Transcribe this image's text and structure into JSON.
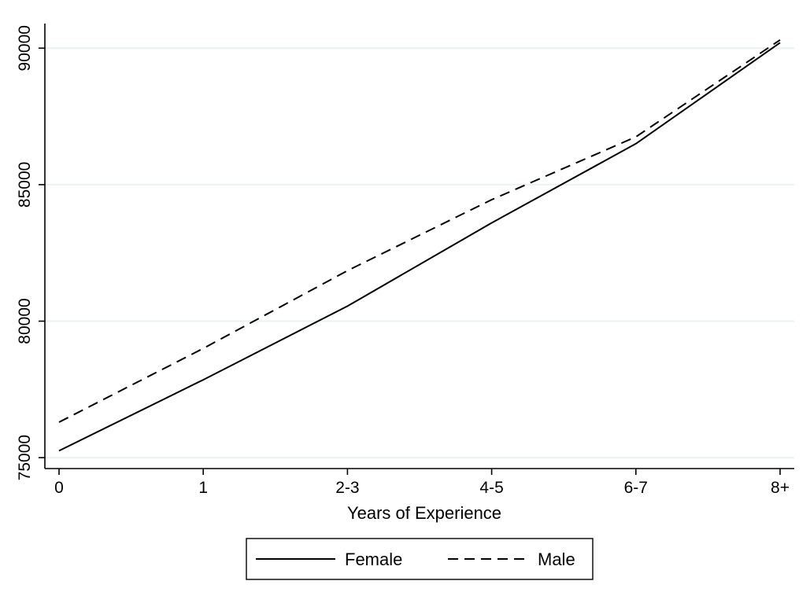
{
  "chart_data": {
    "type": "line",
    "title": "",
    "xlabel": "Years of Experience",
    "ylabel": "",
    "categories": [
      "0",
      "1",
      "2-3",
      "4-5",
      "6-7",
      "8+"
    ],
    "y_ticks": [
      "75000",
      "80000",
      "85000",
      "90000"
    ],
    "y_tick_values": [
      75000,
      80000,
      85000,
      90000
    ],
    "ylim": [
      74600,
      90900
    ],
    "grid": true,
    "legend_position": "bottom",
    "series": [
      {
        "name": "Female",
        "style": "solid",
        "color": "#000000",
        "values": [
          75250,
          77850,
          80550,
          83600,
          86500,
          90200
        ]
      },
      {
        "name": "Male",
        "style": "dashed",
        "color": "#000000",
        "values": [
          76300,
          79000,
          81850,
          84450,
          86750,
          90300
        ]
      }
    ],
    "gridline_color": "#eaf2f3",
    "axis_color": "#000000"
  }
}
